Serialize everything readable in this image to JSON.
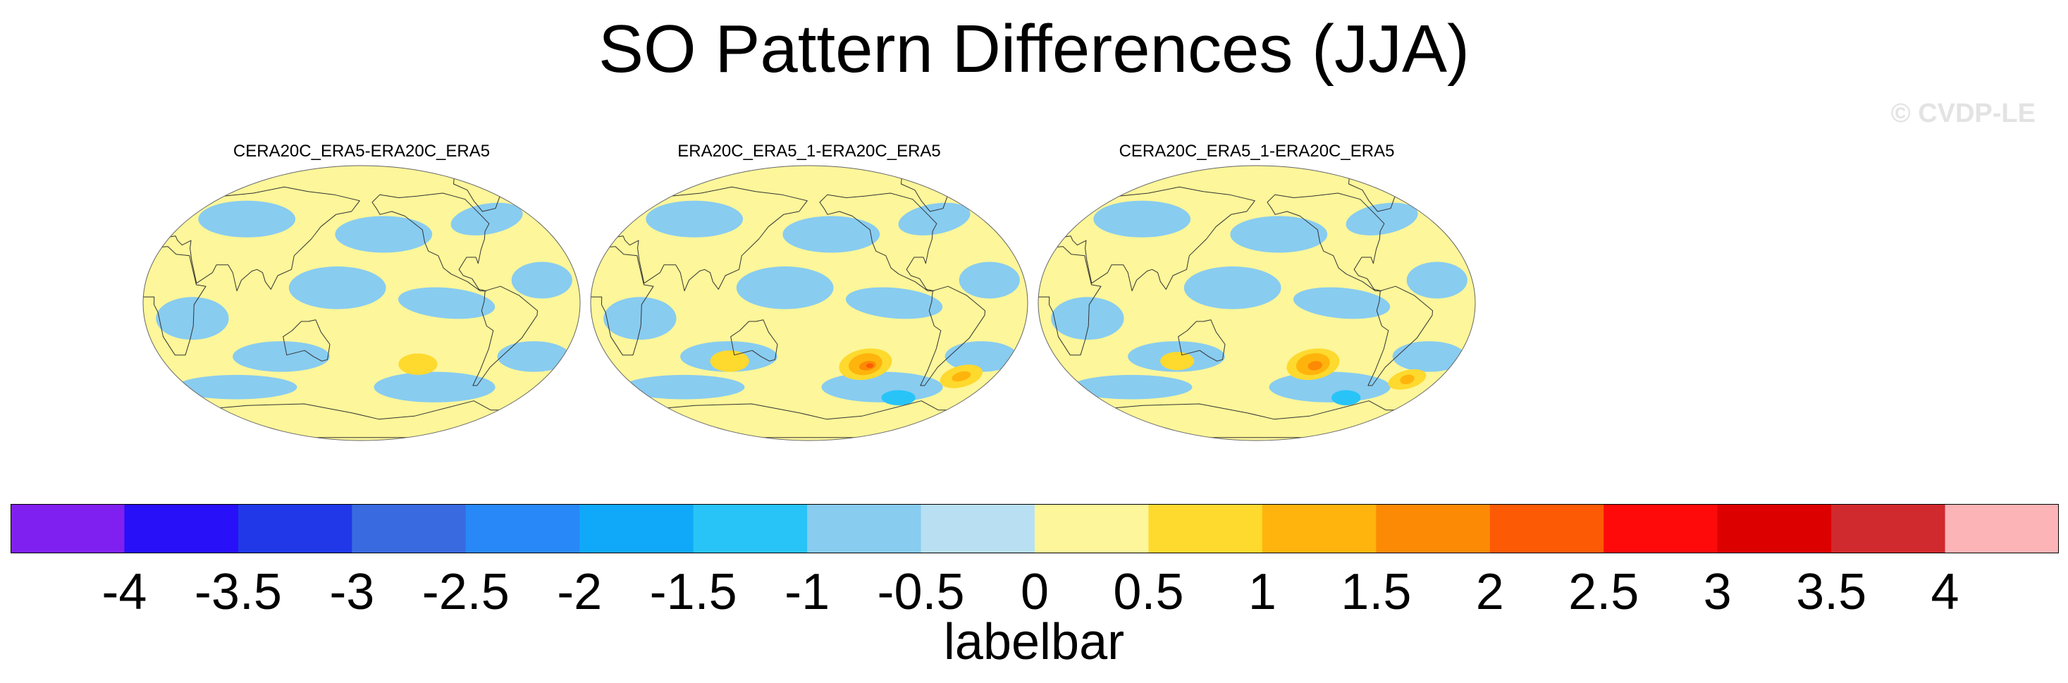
{
  "title": "SO Pattern Differences (JJA)",
  "watermark": "© CVDP-LE",
  "panels": [
    {
      "title": "CERA20C_ERA5-ERA20C_ERA5",
      "variant": 0
    },
    {
      "title": "ERA20C_ERA5_1-ERA20C_ERA5",
      "variant": 1
    },
    {
      "title": "CERA20C_ERA5_1-ERA20C_ERA5",
      "variant": 2
    }
  ],
  "chart_data": {
    "type": "heatmap",
    "title": "SO Pattern Differences (JJA)",
    "colorbar_label": "labelbar",
    "tick_labels": [
      "-4",
      "-3.5",
      "-3",
      "-2.5",
      "-2",
      "-1.5",
      "-1",
      "-0.5",
      "0",
      "0.5",
      "1",
      "1.5",
      "2",
      "2.5",
      "3",
      "3.5",
      "4"
    ],
    "levels": [
      -4,
      -3.5,
      -3,
      -2.5,
      -2,
      -1.5,
      -1,
      -0.5,
      0,
      0.5,
      1,
      1.5,
      2,
      2.5,
      3,
      3.5,
      4
    ],
    "colors": [
      "#8020f0",
      "#2810f8",
      "#2038e8",
      "#3a6ae0",
      "#2888f8",
      "#10a8f8",
      "#28c4f8",
      "#88ccf0",
      "#b8e0f2",
      "#fdf69a",
      "#fed92e",
      "#feb40c",
      "#fd8a05",
      "#fd5a05",
      "#fe0a0a",
      "#dc0000",
      "#d12a2e",
      "#fdb4b6"
    ],
    "panels": [
      {
        "name": "CERA20C_ERA5-ERA20C_ERA5",
        "max_anomaly": 1.0
      },
      {
        "name": "ERA20C_ERA5_1-ERA20C_ERA5",
        "max_anomaly": 2.0
      },
      {
        "name": "CERA20C_ERA5_1-ERA20C_ERA5",
        "max_anomaly": 2.0
      }
    ]
  }
}
